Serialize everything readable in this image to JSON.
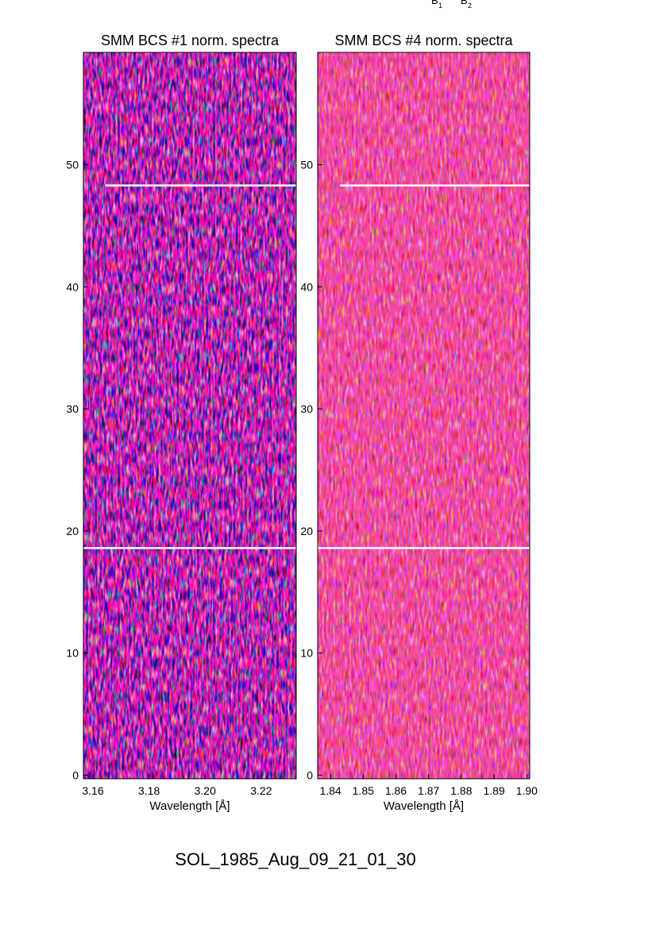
{
  "chart_data": [
    {
      "type": "heatmap",
      "title": "SMM BCS #1 norm. spectra",
      "xlabel": "Wavelength [Å]",
      "xlim": [
        3.1566,
        3.2325
      ],
      "xticks": [
        3.16,
        3.18,
        {
          "value": 3.2,
          "label": "3.20"
        },
        3.22
      ],
      "ylim": [
        -0.3,
        59.2
      ],
      "yticks": [
        0,
        10,
        20,
        30,
        40,
        50
      ],
      "hlines": [
        48.3,
        18.6
      ]
    },
    {
      "type": "heatmap",
      "title": "SMM BCS #4 norm. spectra",
      "xlabel": "Wavelength [Å]",
      "xlim": [
        1.8361,
        1.9009
      ],
      "xticks": [
        1.84,
        1.85,
        1.86,
        1.87,
        1.88,
        1.89,
        {
          "value": 1.9,
          "label": "1.90"
        }
      ],
      "ylim": [
        -0.3,
        59.2
      ],
      "yticks": [
        0,
        10,
        20,
        30,
        40,
        50
      ],
      "hlines": [
        48.3,
        18.6
      ],
      "annotations": [
        {
          "text": "B",
          "sub": "1"
        },
        {
          "text": "B",
          "sub": "2"
        }
      ]
    }
  ],
  "footer": "SOL_1985_Aug_09_21_01_30"
}
